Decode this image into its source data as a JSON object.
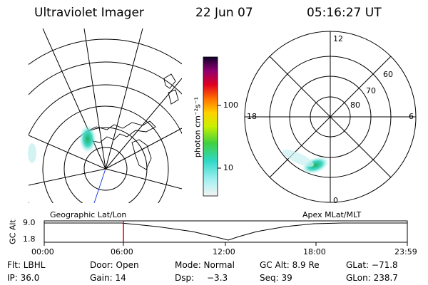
{
  "header": {
    "title": "Ultraviolet Imager",
    "date": "22 Jun 07",
    "time": "05:16:27 UT"
  },
  "colorbar": {
    "unit_label": "photon cm⁻²s⁻¹",
    "tick_labels": [
      "100",
      "10"
    ]
  },
  "geo_panel": {
    "label": "Geographic Lat/Lon"
  },
  "polar_panel": {
    "label": "Apex MLat/MLT",
    "mlt_labels": {
      "top": "12",
      "left": "18",
      "right": "6",
      "bottom": "0"
    },
    "lat_labels": [
      "60",
      "70",
      "80"
    ]
  },
  "timeline": {
    "ylabel": "GC Alt",
    "y_ticks": [
      "9.0",
      "1.8"
    ],
    "x_ticks": [
      "00:00",
      "06:00",
      "12:00",
      "18:00",
      "23:59"
    ],
    "marker_time": "05:16"
  },
  "info": {
    "flt": "Flt: LBHL",
    "door": "Door: Open",
    "mode": "Mode: Normal",
    "gc_alt": "GC Alt: 8.9 Re",
    "glat": "GLat: −71.8",
    "ip": "IP: 36.0",
    "gain": "Gain: 14",
    "dsp_label": "Dsp:",
    "dsp_value": "−3.3",
    "seq": "Seq: 39",
    "glon": "GLon: 238.7"
  },
  "colors": {
    "marker": "#e00000",
    "aurora_green": "#2ecc40",
    "aurora_cyan": "#40e0d0"
  }
}
